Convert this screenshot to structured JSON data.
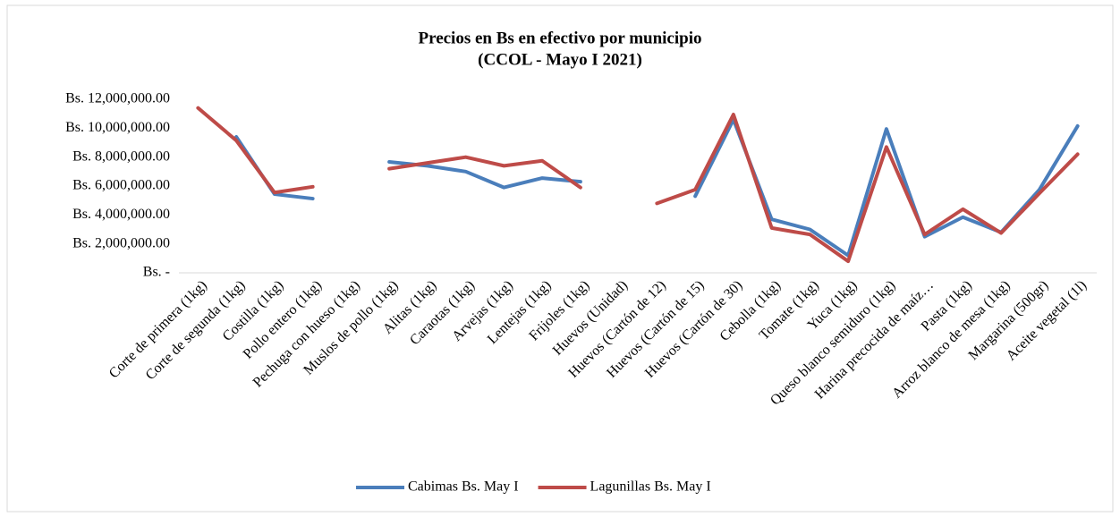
{
  "chart_data": {
    "type": "line",
    "title": "Precios en Bs en efectivo por municipio",
    "subtitle": "(CCOL - Mayo I 2021)",
    "categories": [
      "Corte de primera (1kg)",
      "Corte de segunda (1kg)",
      "Costilla (1kg)",
      "Pollo entero (1kg)",
      "Pechuga con hueso (1kg)",
      "Muslos de pollo (1kg)",
      "Alitas (1kg)",
      "Caraotas (1kg)",
      "Arvejas (1kg)",
      "Lentejas (1kg)",
      "Frijoles (1kg)",
      "Huevos (Unidad)",
      "Huevos (Cartón de 12)",
      "Huevos (Cartón de 15)",
      "Huevos (Cartón de 30)",
      "Cebolla (1kg)",
      "Tomate (1kg)",
      "Yuca (1kg)",
      "Queso blanco semiduro (1kg)",
      "Harina precocida de maíz…",
      "Pasta (1kg)",
      "Arroz blanco de mesa (1kg)",
      "Margarina (500gr)",
      "Aceite vegetal (1l)"
    ],
    "series": [
      {
        "name": "Cabimas Bs. May I",
        "color": "#4a7ebb",
        "values": [
          null,
          9400000,
          5440000,
          5130000,
          null,
          7670000,
          7400000,
          7000000,
          5900000,
          6550000,
          6300000,
          null,
          null,
          5300000,
          10600000,
          3700000,
          3000000,
          1200000,
          9950000,
          2500000,
          3850000,
          2800000,
          5750000,
          10150000
        ]
      },
      {
        "name": "Lagunillas Bs. May I",
        "color": "#be4b48",
        "values": [
          11400000,
          9150000,
          5550000,
          5950000,
          null,
          7200000,
          7600000,
          8000000,
          7400000,
          7750000,
          5900000,
          null,
          4800000,
          5750000,
          10950000,
          3100000,
          2650000,
          800000,
          8700000,
          2650000,
          4400000,
          2750000,
          5500000,
          8200000
        ]
      }
    ],
    "ylim": [
      0,
      12000000
    ],
    "yticks": [
      {
        "value": 0,
        "label": "Bs. -"
      },
      {
        "value": 2000000,
        "label": "Bs. 2,000,000.00"
      },
      {
        "value": 4000000,
        "label": "Bs. 4,000,000.00"
      },
      {
        "value": 6000000,
        "label": "Bs. 6,000,000.00"
      },
      {
        "value": 8000000,
        "label": "Bs. 8,000,000.00"
      },
      {
        "value": 10000000,
        "label": "Bs. 10,000,000.00"
      },
      {
        "value": 12000000,
        "label": "Bs. 12,000,000.00"
      }
    ],
    "grid": false,
    "legend": "bottom"
  }
}
